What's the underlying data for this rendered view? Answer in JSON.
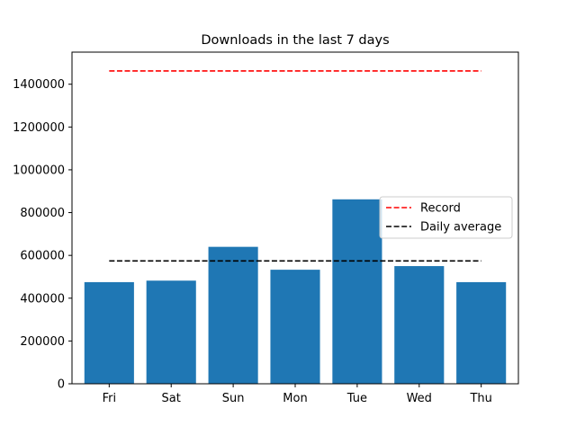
{
  "chart_data": {
    "type": "bar",
    "title": "Downloads in the last 7 days",
    "xlabel": "",
    "ylabel": "",
    "categories": [
      "Fri",
      "Sat",
      "Sun",
      "Mon",
      "Tue",
      "Wed",
      "Thu"
    ],
    "values": [
      475000,
      482000,
      640000,
      533000,
      862000,
      550000,
      475000
    ],
    "ylim": [
      0,
      1550000
    ],
    "yticks": [
      0,
      200000,
      400000,
      600000,
      800000,
      1000000,
      1200000,
      1400000
    ],
    "ytick_labels": [
      "0",
      "200000",
      "400000",
      "600000",
      "800000",
      "1000000",
      "1200000",
      "1400000"
    ],
    "bar_color": "#1f77b4",
    "reference_lines": [
      {
        "name": "Record",
        "value": 1462000,
        "color": "#ff0000",
        "style": "dashed"
      },
      {
        "name": "Daily average",
        "value": 574000,
        "color": "#000000",
        "style": "dashed"
      }
    ],
    "grid": false,
    "legend_position": "center-right"
  }
}
